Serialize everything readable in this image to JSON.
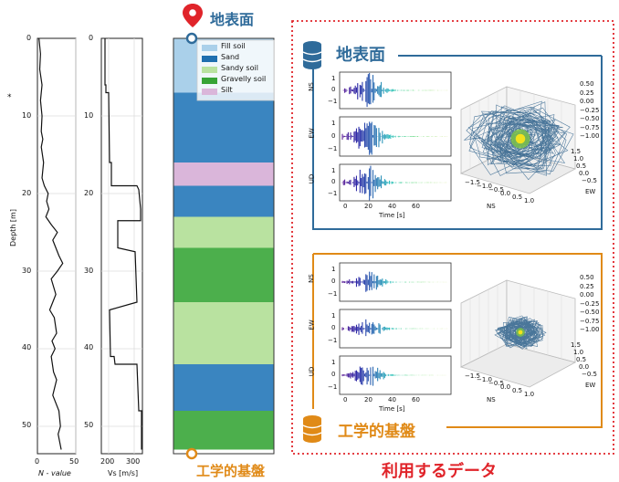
{
  "profile": {
    "depth_axis_label": "Depth [m]",
    "depth_ticks": [
      "0",
      "10",
      "20",
      "30",
      "40",
      "50"
    ],
    "n_axis_label": "N - value",
    "n_ticks": [
      "0",
      "50"
    ],
    "vs_axis_label": "Vs [m/s]",
    "vs_ticks": [
      "200",
      "300"
    ],
    "stray_mark": "*"
  },
  "soil_column": {
    "top_label": "地表面",
    "bottom_label": "工学的基盤",
    "legend": [
      {
        "name": "Fill soil",
        "color": "#aad0ea"
      },
      {
        "name": "Sand",
        "color": "#1f6faf"
      },
      {
        "name": "Sandy soil",
        "color": "#b9e2a0"
      },
      {
        "name": "Gravelly soil",
        "color": "#37a437"
      },
      {
        "name": "Silt",
        "color": "#dab6da"
      }
    ],
    "layers": [
      {
        "type": "Fill soil",
        "top": 0,
        "bottom": 7,
        "color": "#aad0ea"
      },
      {
        "type": "Sand",
        "top": 7,
        "bottom": 16,
        "color": "#3a85c0"
      },
      {
        "type": "Silt",
        "top": 16,
        "bottom": 19,
        "color": "#dab6da"
      },
      {
        "type": "Sand",
        "top": 19,
        "bottom": 23,
        "color": "#3a85c0"
      },
      {
        "type": "Sandy soil",
        "top": 23,
        "bottom": 27,
        "color": "#b9e2a0"
      },
      {
        "type": "Gravelly soil",
        "top": 27,
        "bottom": 34,
        "color": "#4caf4c"
      },
      {
        "type": "Sandy soil",
        "top": 34,
        "bottom": 42,
        "color": "#b9e2a0"
      },
      {
        "type": "Sand",
        "top": 42,
        "bottom": 48,
        "color": "#3a85c0"
      },
      {
        "type": "Gravelly soil",
        "top": 48,
        "bottom": 53,
        "color": "#4caf4c"
      }
    ]
  },
  "surface_panel": {
    "title": "地表面",
    "ts_labels": [
      "NS",
      "EW",
      "UD"
    ],
    "time_label": "Time [s]",
    "time_ticks": [
      "0",
      "20",
      "40",
      "60"
    ],
    "y_ticks": [
      "1",
      "0",
      "−1"
    ],
    "orbit_z_ticks": [
      "0.50",
      "0.25",
      "0.00",
      "−0.25",
      "−0.50",
      "−0.75",
      "−1.00"
    ],
    "orbit_ns_ticks": [
      "−1.5",
      "−1.0",
      "−0.5",
      "0.0",
      "0.5",
      "1.0"
    ],
    "orbit_ew_ticks": [
      "1.5",
      "1.0",
      "0.5",
      "0.0",
      "−0.5"
    ],
    "orbit_ns_label": "NS",
    "orbit_ew_label": "EW"
  },
  "base_panel": {
    "title": "工学的基盤",
    "ts_labels": [
      "NS",
      "EW",
      "UD"
    ],
    "time_label": "Time [s]",
    "time_ticks": [
      "0",
      "20",
      "40",
      "60"
    ],
    "y_ticks": [
      "1",
      "0",
      "−1"
    ],
    "orbit_z_ticks": [
      "0.50",
      "0.25",
      "0.00",
      "−0.25",
      "−0.50",
      "−0.75",
      "−1.00"
    ],
    "orbit_ns_ticks": [
      "−1.5",
      "−1.0",
      "−0.5",
      "0.0",
      "0.5",
      "1.0"
    ],
    "orbit_ew_ticks": [
      "1.5",
      "1.0",
      "0.5",
      "0.0",
      "−0.5"
    ],
    "orbit_ns_label": "NS",
    "orbit_ew_label": "EW"
  },
  "footer_label": "利用するデータ",
  "colors": {
    "blue": "#2f6b9a",
    "orange": "#e08a17",
    "red": "#e0242a"
  }
}
